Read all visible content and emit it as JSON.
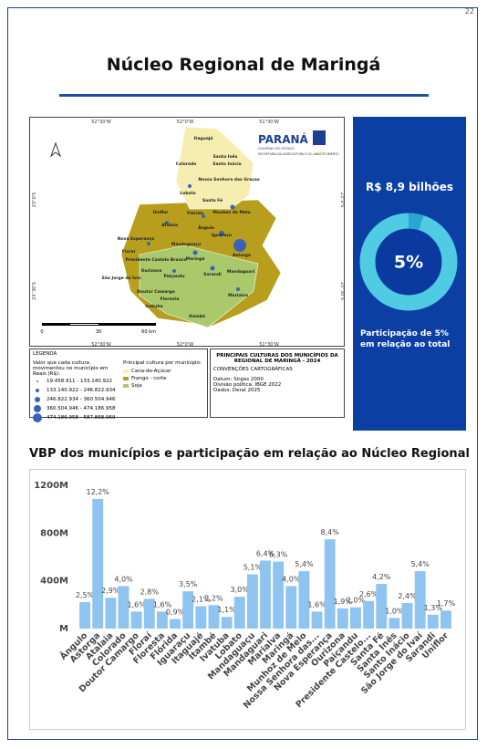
{
  "page_number": "22",
  "title": "Núcleo Regional de Maringá",
  "map": {
    "top_coords": [
      "52°30'W",
      "52°0'W",
      "51°30'W"
    ],
    "bottom_coords": [
      "52°30'W",
      "52°0'W",
      "51°30'W"
    ],
    "side_coords": [
      "23°0'S",
      "23°30'S"
    ],
    "scale": [
      "0",
      "30",
      "60 km"
    ],
    "logo": {
      "name": "PARANÁ",
      "gov": "GOVERNO DO ESTADO",
      "dept": "SECRETARIA DA AGRICULTURA E DO ABASTECIMENTO"
    },
    "labels": [
      "Itaguajé",
      "Santa Inês",
      "Santo Inácio",
      "Colorado",
      "Nossa Senhora das Graças",
      "Lobato",
      "Santa Fé",
      "Munhoz de Melo",
      "Uniflor",
      "Flórida",
      "Atalaia",
      "Ângulo",
      "Iguaraçu",
      "Nova Esperança",
      "Mandaguaçu",
      "Astorga",
      "Floraí",
      "Presidente Castelo Branco",
      "Maringá",
      "São Jorge do Ivaí",
      "Ourizona",
      "Paiçandu",
      "Sarandi",
      "Mandaguari",
      "Doutor Camargo",
      "Floresta",
      "Marialva",
      "Ivatuba",
      "Itambé"
    ]
  },
  "legend": {
    "heading": "LEGENDA",
    "value_title": "Valor que cada cultura movimentou no município em Reais (R$):",
    "ranges": [
      "19.458.911 - 133.140.922",
      "133.140.922 - 246.822.934",
      "246.822.934 - 360.504.946",
      "360.504.946 - 474.186.958",
      "474.186.958 - 587.868.969"
    ],
    "crop_title": "Principal cultura por município:",
    "crops": [
      "Cana-de-Açúcar",
      "Frango - corte",
      "Soja"
    ]
  },
  "map_title": {
    "title": "PRINCIPAIS CULTURAS DOS MUNICÍPIOS DA REGIONAL DE MARINGÁ - 2024",
    "conventions": "CONVENÇÕES CARTOGRÁFICAS",
    "lines": [
      "Datum: Sirgas 2000",
      "Divisão política: IBGE 2022",
      "Dados: Deral 2025"
    ]
  },
  "kpi": {
    "value": "R$ 8,9 bilhões",
    "share": 5,
    "share_label": "5%",
    "caption": "Participação de 5% em relação ao total"
  },
  "chart_data": {
    "type": "bar",
    "title": "VBP dos municípios e participação em relação ao Núcleo Regional",
    "color": "#8ec4ef",
    "categories": [
      "Ângulo",
      "Astorga",
      "Atalaia",
      "Colorado",
      "Doutor Camargo",
      "Floraí",
      "Floresta",
      "Flórida",
      "Iguaraçu",
      "Itaguajé",
      "Itambé",
      "Ivatuba",
      "Lobato",
      "Mandaguaçu",
      "Mandaguari",
      "Marialva",
      "Maringá",
      "Munhoz de Melo",
      "Nossa Senhora das...",
      "Nova Esperança",
      "Ourizona",
      "Paiçandu",
      "Presidente Castelo...",
      "Santa Fé",
      "Santa Inês",
      "Santo Inácio",
      "São Jorge do Ivaí",
      "Sarandi",
      "Uniflor"
    ],
    "values": [
      222,
      1086,
      258,
      356,
      142,
      249,
      142,
      80,
      312,
      187,
      196,
      98,
      267,
      454,
      570,
      561,
      356,
      481,
      142,
      748,
      169,
      178,
      231,
      374,
      89,
      214,
      481,
      116,
      151
    ],
    "shares": [
      2.5,
      12.2,
      2.9,
      4.0,
      1.6,
      2.8,
      1.6,
      0.9,
      3.5,
      2.1,
      2.2,
      1.1,
      3.0,
      5.1,
      6.4,
      6.3,
      4.0,
      5.4,
      1.6,
      8.4,
      1.9,
      2.0,
      2.6,
      4.2,
      1.0,
      2.4,
      5.4,
      1.3,
      1.7
    ],
    "share_labels": [
      "2,5%",
      "12,2%",
      "2,9%",
      "4,0%",
      "1,6%",
      "2,8%",
      "1,6%",
      "0,9%",
      "3,5%",
      "2,1%",
      "2,2%",
      "1,1%",
      "3,0%",
      "5,1%",
      "6,4%",
      "6,3%",
      "4,0%",
      "5,4%",
      "1,6%",
      "8,4%",
      "1,9%",
      "2,0%",
      "2,6%",
      "4,2%",
      "1,0%",
      "2,4%",
      "5,4%",
      "1,3%",
      "1,7%"
    ],
    "ylim": [
      0,
      1200
    ],
    "yticks": [
      {
        "value": 0,
        "label": "M"
      },
      {
        "value": 400,
        "label": "400M"
      },
      {
        "value": 800,
        "label": "800M"
      },
      {
        "value": 1200,
        "label": "1200M"
      }
    ]
  }
}
